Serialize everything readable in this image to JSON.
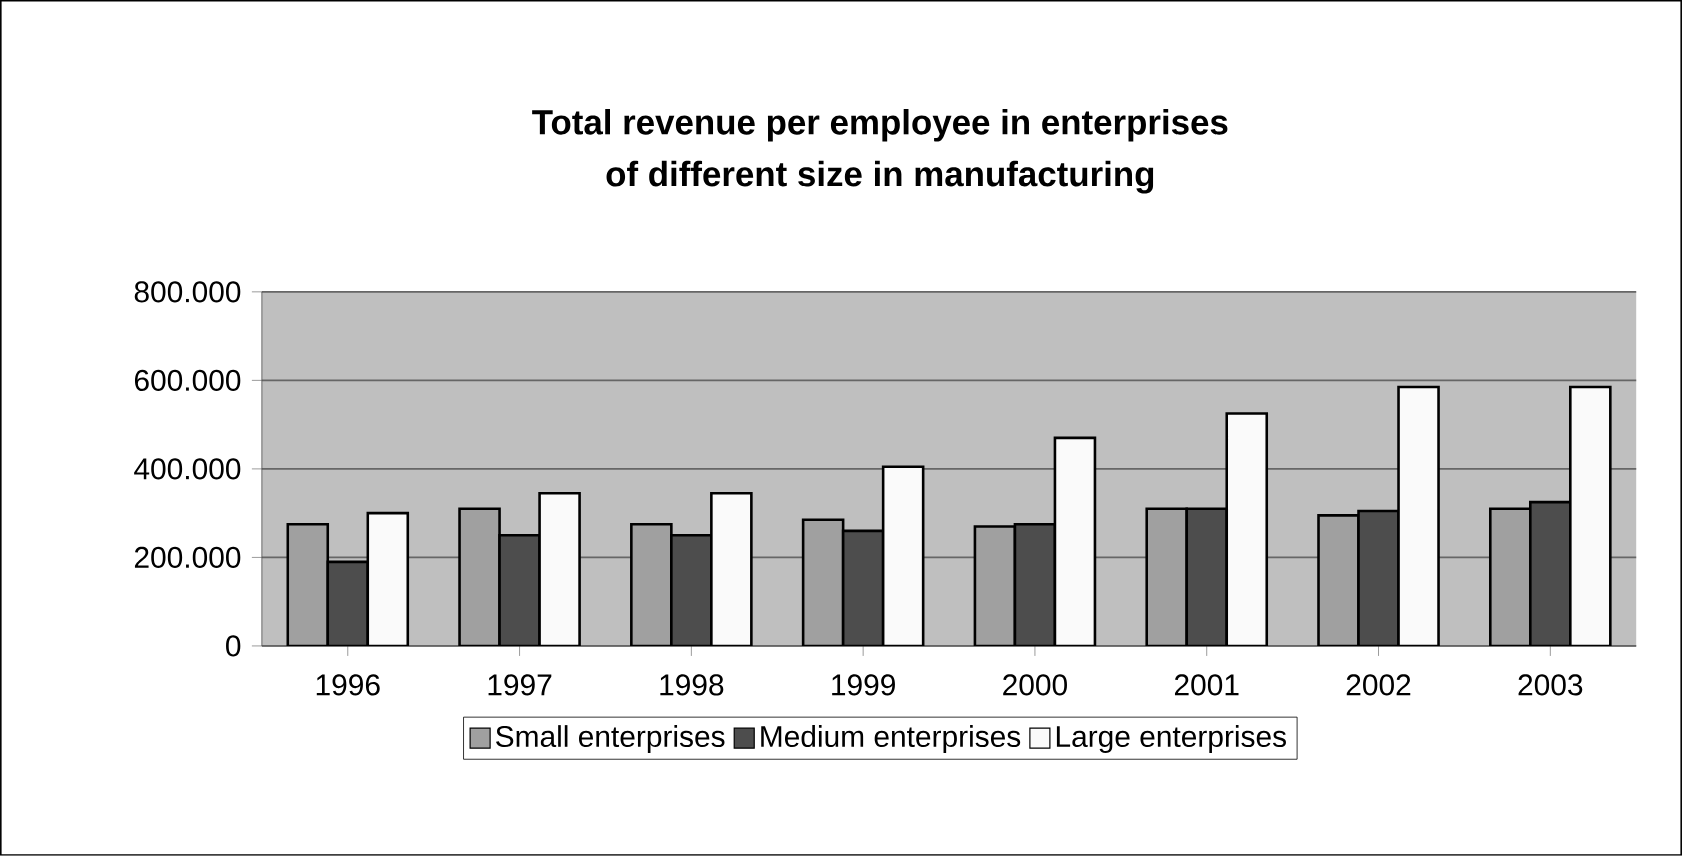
{
  "chart_data": {
    "type": "bar",
    "title": "Total revenue per employee in enterprises\nof different size in manufacturing",
    "categories": [
      "1996",
      "1997",
      "1998",
      "1999",
      "2000",
      "2001",
      "2002",
      "2003"
    ],
    "series": [
      {
        "name": "Small enterprises",
        "color": "#a0a0a0",
        "values": [
          275000,
          310000,
          275000,
          285000,
          270000,
          310000,
          295000,
          310000
        ]
      },
      {
        "name": "Medium enterprises",
        "color": "#4d4d4d",
        "values": [
          190000,
          250000,
          250000,
          260000,
          275000,
          310000,
          305000,
          325000
        ]
      },
      {
        "name": "Large enterprises",
        "color": "#fafafa",
        "values": [
          300000,
          345000,
          345000,
          405000,
          470000,
          525000,
          585000,
          585000
        ]
      }
    ],
    "ylim": [
      0,
      800000
    ],
    "yticks": [
      {
        "value": 0,
        "label": "0"
      },
      {
        "value": 200000,
        "label": "200.000"
      },
      {
        "value": 400000,
        "label": "400.000"
      },
      {
        "value": 600000,
        "label": "600.000"
      },
      {
        "value": 800000,
        "label": "800.000"
      }
    ],
    "grid": "y",
    "legend": "bottom"
  }
}
